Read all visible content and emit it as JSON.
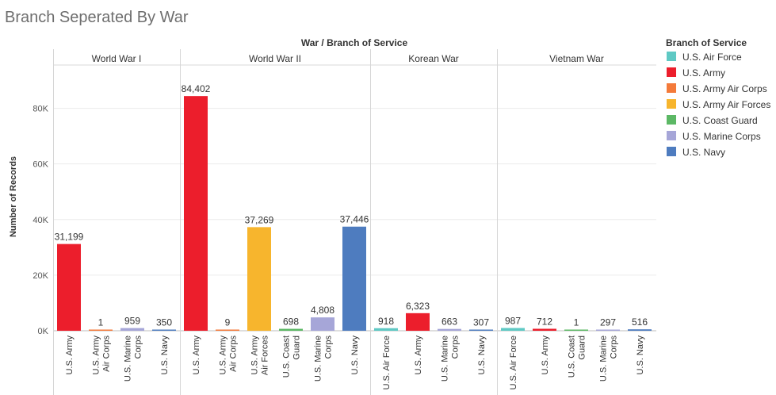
{
  "chart_data": {
    "type": "bar",
    "title": "Branch Seperated By War",
    "column_header": "War / Branch of Service",
    "ylabel": "Number of Records",
    "ylim": [
      0,
      95000
    ],
    "yticks": [
      {
        "value": 0,
        "label": "0K"
      },
      {
        "value": 20000,
        "label": "20K"
      },
      {
        "value": 40000,
        "label": "40K"
      },
      {
        "value": 60000,
        "label": "60K"
      },
      {
        "value": 80000,
        "label": "80K"
      }
    ],
    "grid": true,
    "legend_placement": "right",
    "legend_title": "Branch of Service",
    "legend": [
      {
        "name": "U.S. Air Force",
        "color": "#5fc9c4"
      },
      {
        "name": "U.S. Army",
        "color": "#ec1e2c"
      },
      {
        "name": "U.S. Army Air Corps",
        "color": "#f47a3a"
      },
      {
        "name": "U.S. Army Air Forces",
        "color": "#f7b52d"
      },
      {
        "name": "U.S. Coast Guard",
        "color": "#5cb865"
      },
      {
        "name": "U.S. Marine Corps",
        "color": "#a6a6d8"
      },
      {
        "name": "U.S. Navy",
        "color": "#4e7cbf"
      }
    ],
    "panels": [
      {
        "war": "World War I",
        "bars": [
          {
            "category": "U.S. Army",
            "label_lines": [
              "U.S. Army"
            ],
            "value": 31199,
            "label": "31,199",
            "color": "#ec1e2c"
          },
          {
            "category": "U.S. Army Air Corps",
            "label_lines": [
              "U.S. Army",
              "Air Corps"
            ],
            "value": 1,
            "label": "1",
            "color": "#f47a3a"
          },
          {
            "category": "U.S. Marine Corps",
            "label_lines": [
              "U.S. Marine",
              "Corps"
            ],
            "value": 959,
            "label": "959",
            "color": "#a6a6d8"
          },
          {
            "category": "U.S. Navy",
            "label_lines": [
              "U.S. Navy"
            ],
            "value": 350,
            "label": "350",
            "color": "#4e7cbf"
          }
        ]
      },
      {
        "war": "World War II",
        "bars": [
          {
            "category": "U.S. Army",
            "label_lines": [
              "U.S. Army"
            ],
            "value": 84402,
            "label": "84,402",
            "color": "#ec1e2c"
          },
          {
            "category": "U.S. Army Air Corps",
            "label_lines": [
              "U.S. Army",
              "Air Corps"
            ],
            "value": 9,
            "label": "9",
            "color": "#f47a3a"
          },
          {
            "category": "U.S. Army Air Forces",
            "label_lines": [
              "U.S. Army",
              "Air Forces"
            ],
            "value": 37269,
            "label": "37,269",
            "color": "#f7b52d"
          },
          {
            "category": "U.S. Coast Guard",
            "label_lines": [
              "U.S. Coast",
              "Guard"
            ],
            "value": 698,
            "label": "698",
            "color": "#5cb865"
          },
          {
            "category": "U.S. Marine Corps",
            "label_lines": [
              "U.S. Marine",
              "Corps"
            ],
            "value": 4808,
            "label": "4,808",
            "color": "#a6a6d8"
          },
          {
            "category": "U.S. Navy",
            "label_lines": [
              "U.S. Navy"
            ],
            "value": 37446,
            "label": "37,446",
            "color": "#4e7cbf"
          }
        ]
      },
      {
        "war": "Korean War",
        "bars": [
          {
            "category": "U.S. Air Force",
            "label_lines": [
              "U.S. Air Force"
            ],
            "value": 918,
            "label": "918",
            "color": "#5fc9c4"
          },
          {
            "category": "U.S. Army",
            "label_lines": [
              "U.S. Army"
            ],
            "value": 6323,
            "label": "6,323",
            "color": "#ec1e2c"
          },
          {
            "category": "U.S. Marine Corps",
            "label_lines": [
              "U.S. Marine",
              "Corps"
            ],
            "value": 663,
            "label": "663",
            "color": "#a6a6d8"
          },
          {
            "category": "U.S. Navy",
            "label_lines": [
              "U.S. Navy"
            ],
            "value": 307,
            "label": "307",
            "color": "#4e7cbf"
          }
        ]
      },
      {
        "war": "Vietnam War",
        "bars": [
          {
            "category": "U.S. Air Force",
            "label_lines": [
              "U.S. Air Force"
            ],
            "value": 987,
            "label": "987",
            "color": "#5fc9c4"
          },
          {
            "category": "U.S. Army",
            "label_lines": [
              "U.S. Army"
            ],
            "value": 712,
            "label": "712",
            "color": "#ec1e2c"
          },
          {
            "category": "U.S. Coast Guard",
            "label_lines": [
              "U.S. Coast",
              "Guard"
            ],
            "value": 1,
            "label": "1",
            "color": "#5cb865"
          },
          {
            "category": "U.S. Marine Corps",
            "label_lines": [
              "U.S. Marine",
              "Corps"
            ],
            "value": 297,
            "label": "297",
            "color": "#a6a6d8"
          },
          {
            "category": "U.S. Navy",
            "label_lines": [
              "U.S. Navy"
            ],
            "value": 516,
            "label": "516",
            "color": "#4e7cbf"
          }
        ]
      }
    ]
  }
}
